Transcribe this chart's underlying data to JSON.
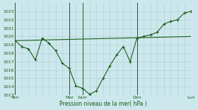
{
  "background_color": "#cce8ec",
  "grid_color": "#aacdd4",
  "line_color": "#1a5c1a",
  "marker_color": "#1a5c1a",
  "xlabel": "Pression niveau de la mer( hPa )",
  "ylim": [
    1013,
    1024
  ],
  "yticks": [
    1013,
    1014,
    1015,
    1016,
    1017,
    1018,
    1019,
    1020,
    1021,
    1022,
    1023
  ],
  "xtick_labels": [
    "Ven",
    "Mar",
    "Sam",
    "Dim",
    "Lun"
  ],
  "xtick_positions": [
    0,
    8,
    10,
    18,
    26
  ],
  "vline_positions": [
    0,
    8,
    10,
    18,
    26
  ],
  "num_x": 26,
  "line1_x": [
    0,
    1,
    2,
    3,
    4,
    5,
    6,
    7,
    8,
    9,
    10,
    11,
    12,
    13,
    14,
    15,
    16,
    17,
    18,
    19,
    20,
    21,
    22,
    23,
    24,
    25,
    26
  ],
  "line1_y": [
    1019.5,
    1018.8,
    1018.5,
    1017.2,
    1019.8,
    1019.2,
    1018.3,
    1016.8,
    1016.2,
    1014.1,
    1013.8,
    1013.1,
    1013.5,
    1015.0,
    1016.5,
    1017.8,
    1018.8,
    1017.0,
    1019.8,
    1020.0,
    1020.2,
    1020.5,
    1021.5,
    1021.8,
    1022.0,
    1022.8,
    1023.0
  ],
  "line2_x": [
    0,
    26
  ],
  "line2_y": [
    1019.5,
    1020.0
  ]
}
